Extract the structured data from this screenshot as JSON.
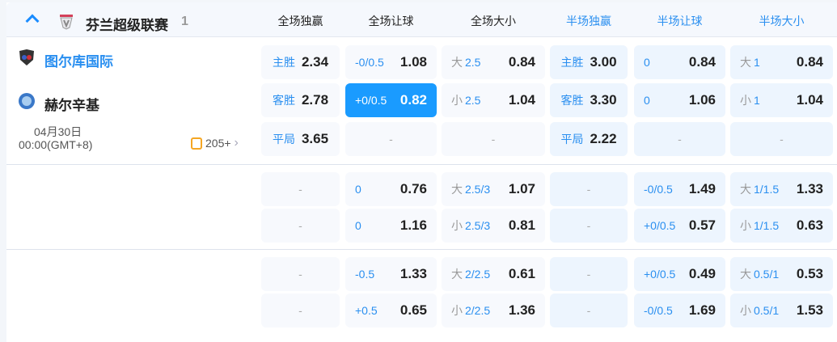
{
  "league": {
    "name": "芬兰超级联赛",
    "count": "1"
  },
  "columns": [
    {
      "label": "全场独赢",
      "color": "#222222"
    },
    {
      "label": "全场让球",
      "color": "#222222"
    },
    {
      "label": "全场大小",
      "color": "#222222"
    },
    {
      "label": "半场独赢",
      "color": "#2a8ff0"
    },
    {
      "label": "半场让球",
      "color": "#2a8ff0"
    },
    {
      "label": "半场大小",
      "color": "#2a8ff0"
    }
  ],
  "match": {
    "home": {
      "name": "图尔库国际",
      "color": "#2a8ff0"
    },
    "away": {
      "name": "赫尔辛基",
      "color": "#222222"
    },
    "date": "04月30日",
    "time": "00:00(GMT+8)",
    "more_markets": "205+"
  },
  "blocks": [
    {
      "rows": [
        [
          {
            "k": "x1",
            "line": "主胜",
            "odds": "2.34"
          },
          {
            "k": "sp",
            "line": "-0/0.5",
            "odds": "1.08"
          },
          {
            "k": "sp",
            "pre": "大",
            "line": "2.5",
            "odds": "0.84"
          },
          {
            "k": "x1",
            "line": "主胜",
            "odds": "3.00"
          },
          {
            "k": "sp",
            "line": "0",
            "odds": "0.84"
          },
          {
            "k": "sp",
            "pre": "大",
            "line": "1",
            "odds": "0.84"
          }
        ],
        [
          {
            "k": "x1",
            "line": "客胜",
            "odds": "2.78"
          },
          {
            "k": "sp",
            "line": "+0/0.5",
            "odds": "0.82",
            "selected": true
          },
          {
            "k": "sp",
            "pre": "小",
            "line": "2.5",
            "odds": "1.04"
          },
          {
            "k": "x1",
            "line": "客胜",
            "odds": "3.30"
          },
          {
            "k": "sp",
            "line": "0",
            "odds": "1.06"
          },
          {
            "k": "sp",
            "pre": "小",
            "line": "1",
            "odds": "1.04"
          }
        ],
        [
          {
            "k": "x1",
            "line": "平局",
            "odds": "3.65"
          },
          {
            "k": "empty",
            "text": "-"
          },
          {
            "k": "empty",
            "text": "-"
          },
          {
            "k": "x1",
            "line": "平局",
            "odds": "2.22"
          },
          {
            "k": "empty",
            "text": "-"
          },
          {
            "k": "empty",
            "text": "-"
          }
        ]
      ]
    },
    {
      "rows": [
        [
          {
            "k": "empty",
            "text": "-"
          },
          {
            "k": "sp",
            "line": "0",
            "odds": "0.76"
          },
          {
            "k": "sp",
            "pre": "大",
            "line": "2.5/3",
            "odds": "1.07"
          },
          {
            "k": "empty",
            "text": "-"
          },
          {
            "k": "sp",
            "line": "-0/0.5",
            "odds": "1.49"
          },
          {
            "k": "sp",
            "pre": "大",
            "line": "1/1.5",
            "odds": "1.33"
          }
        ],
        [
          {
            "k": "empty",
            "text": "-"
          },
          {
            "k": "sp",
            "line": "0",
            "odds": "1.16"
          },
          {
            "k": "sp",
            "pre": "小",
            "line": "2.5/3",
            "odds": "0.81"
          },
          {
            "k": "empty",
            "text": "-"
          },
          {
            "k": "sp",
            "line": "+0/0.5",
            "odds": "0.57"
          },
          {
            "k": "sp",
            "pre": "小",
            "line": "1/1.5",
            "odds": "0.63"
          }
        ]
      ]
    },
    {
      "rows": [
        [
          {
            "k": "empty",
            "text": "-"
          },
          {
            "k": "sp",
            "line": "-0.5",
            "odds": "1.33"
          },
          {
            "k": "sp",
            "pre": "大",
            "line": "2/2.5",
            "odds": "0.61"
          },
          {
            "k": "empty",
            "text": "-"
          },
          {
            "k": "sp",
            "line": "+0/0.5",
            "odds": "0.49"
          },
          {
            "k": "sp",
            "pre": "大",
            "line": "0.5/1",
            "odds": "0.53"
          }
        ],
        [
          {
            "k": "empty",
            "text": "-"
          },
          {
            "k": "sp",
            "line": "+0.5",
            "odds": "0.65"
          },
          {
            "k": "sp",
            "pre": "小",
            "line": "2/2.5",
            "odds": "1.36"
          },
          {
            "k": "empty",
            "text": "-"
          },
          {
            "k": "sp",
            "line": "-0/0.5",
            "odds": "1.69"
          },
          {
            "k": "sp",
            "pre": "小",
            "line": "0.5/1",
            "odds": "1.53"
          }
        ]
      ]
    }
  ],
  "colors": {
    "accent": "#1a9bff",
    "selected_bg": "#1a9bff"
  }
}
